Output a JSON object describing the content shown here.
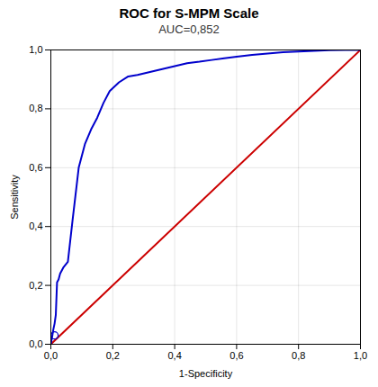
{
  "chart_data": {
    "type": "line",
    "title": "ROC for S-MPM Scale",
    "subtitle": "AUC=0,852",
    "x_label": "1-Specificity",
    "y_label": "Sensitivity",
    "series": [
      {
        "color": "#cc0000",
        "x": [
          0,
          1
        ],
        "values": [
          0,
          1
        ]
      },
      {
        "color": "#0000cc",
        "x": [
          0.0,
          0.005,
          0.008,
          0.012,
          0.016,
          0.02,
          0.025,
          0.03,
          0.04,
          0.055,
          0.07,
          0.09,
          0.11,
          0.13,
          0.15,
          0.17,
          0.19,
          0.22,
          0.25,
          0.28,
          0.32,
          0.36,
          0.4,
          0.44,
          0.48,
          0.52,
          0.56,
          0.6,
          0.65,
          0.7,
          0.75,
          0.8,
          0.85,
          0.9,
          0.95,
          1.0
        ],
        "values": [
          0.0,
          0.03,
          0.05,
          0.07,
          0.1,
          0.21,
          0.22,
          0.24,
          0.26,
          0.28,
          0.42,
          0.6,
          0.68,
          0.73,
          0.77,
          0.82,
          0.86,
          0.89,
          0.91,
          0.915,
          0.925,
          0.935,
          0.945,
          0.955,
          0.96,
          0.966,
          0.972,
          0.977,
          0.983,
          0.988,
          0.992,
          0.995,
          0.997,
          0.999,
          1.0,
          1.0
        ]
      },
      {
        "type": "scatter",
        "marker": "circle",
        "color": "#0000cc",
        "x": [
          0.012
        ],
        "values": [
          0.03
        ]
      }
    ],
    "xlim": [
      0,
      1
    ],
    "ylim": [
      0,
      1
    ],
    "xticks": [
      {
        "value": 0.0,
        "label": "0,0"
      },
      {
        "value": 0.2,
        "label": "0,2"
      },
      {
        "value": 0.4,
        "label": "0,4"
      },
      {
        "value": 0.6,
        "label": "0,6"
      },
      {
        "value": 0.8,
        "label": "0,8"
      },
      {
        "value": 1.0,
        "label": "1,0"
      }
    ],
    "yticks": [
      {
        "value": 0.0,
        "label": "0,0"
      },
      {
        "value": 0.2,
        "label": "0,2"
      },
      {
        "value": 0.4,
        "label": "0,4"
      },
      {
        "value": 0.6,
        "label": "0,6"
      },
      {
        "value": 0.8,
        "label": "0,8"
      },
      {
        "value": 1.0,
        "label": "1,0"
      }
    ],
    "grid": true
  }
}
